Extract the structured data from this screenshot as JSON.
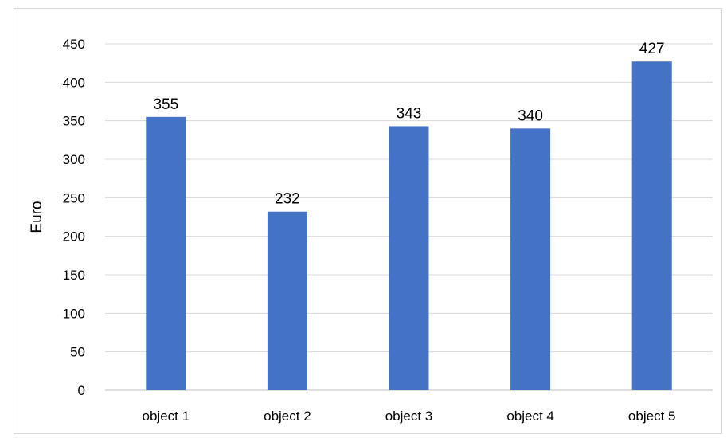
{
  "chart_data": {
    "type": "bar",
    "categories": [
      "object 1",
      "object 2",
      "object 3",
      "object 4",
      "object 5"
    ],
    "values": [
      355,
      232,
      343,
      340,
      427
    ],
    "data_labels": [
      "355",
      "232",
      "343",
      "340",
      "427"
    ],
    "title": "",
    "xlabel": "",
    "ylabel": "Euro",
    "ylim": [
      0,
      450
    ],
    "yticks": [
      "0",
      "50",
      "100",
      "150",
      "200",
      "250",
      "300",
      "350",
      "400",
      "450"
    ],
    "grid": true,
    "legend": "none",
    "colors": {
      "bar": "#4472c4",
      "grid": "#d9d9d9",
      "axis": "#bfbfbf",
      "text": "#000000"
    }
  }
}
